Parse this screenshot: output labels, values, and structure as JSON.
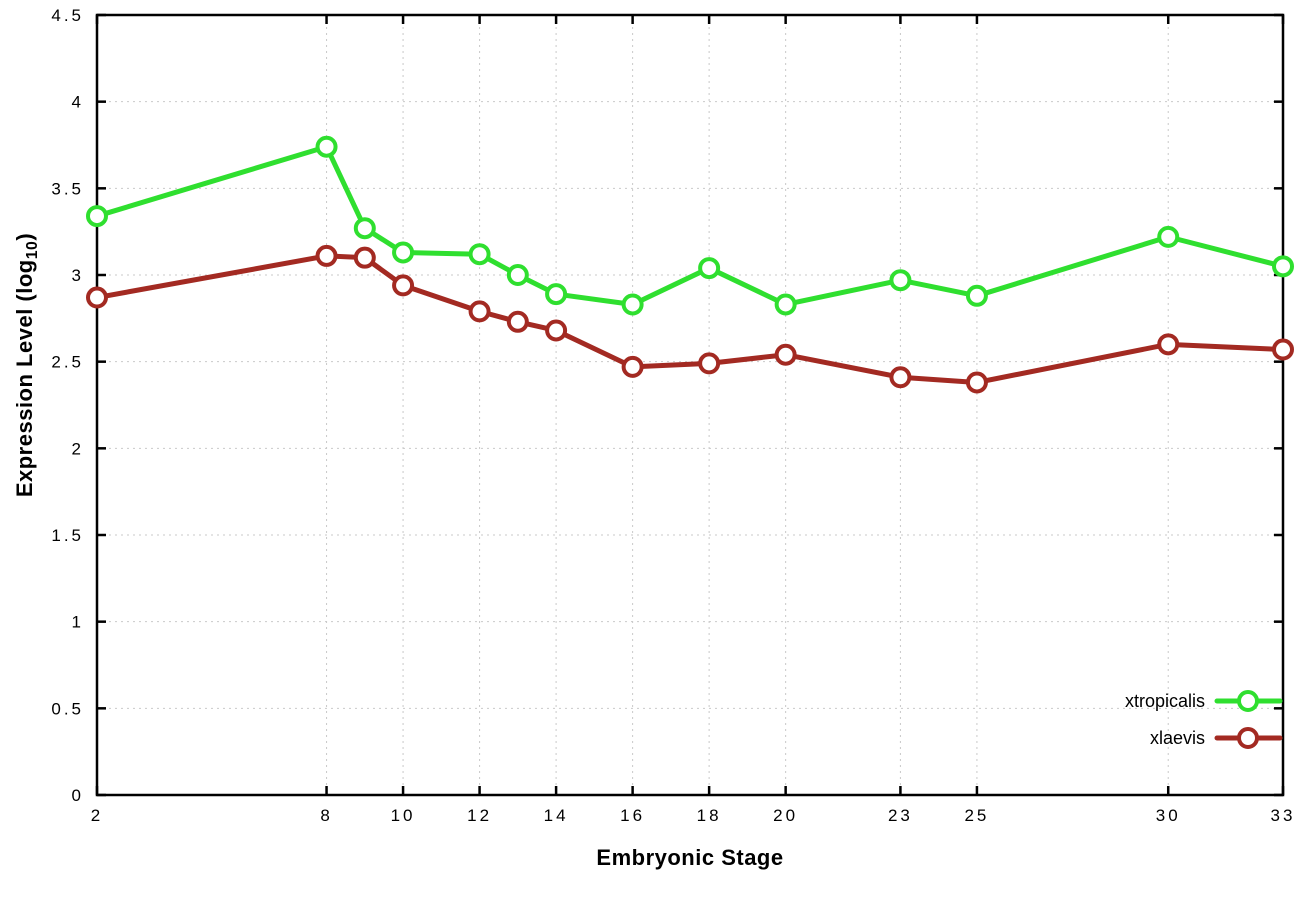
{
  "chart_data": {
    "type": "line",
    "title": "",
    "xlabel": "Embryonic Stage",
    "ylabel_prefix": "Expression Level (log",
    "ylabel_sub": "10",
    "ylabel_suffix": ")",
    "xlim": [
      2,
      33
    ],
    "ylim": [
      0,
      4.5
    ],
    "x_ticks": [
      2,
      8,
      10,
      12,
      14,
      16,
      18,
      20,
      23,
      25,
      30,
      33
    ],
    "y_ticks": [
      0,
      0.5,
      1,
      1.5,
      2,
      2.5,
      3,
      3.5,
      4,
      4.5
    ],
    "grid": true,
    "legend_position": "bottom-right",
    "x": [
      2,
      8,
      9,
      10,
      12,
      13,
      14,
      16,
      18,
      20,
      23,
      25,
      30,
      33
    ],
    "series": [
      {
        "name": "xtropicalis",
        "color": "#2fdf2f",
        "values": [
          3.34,
          3.74,
          3.27,
          3.13,
          3.12,
          3.0,
          2.89,
          2.83,
          3.04,
          2.83,
          2.97,
          2.88,
          3.22,
          3.05
        ]
      },
      {
        "name": "xlaevis",
        "color": "#a32a22",
        "values": [
          2.87,
          3.11,
          3.1,
          2.94,
          2.79,
          2.73,
          2.68,
          2.47,
          2.49,
          2.54,
          2.41,
          2.38,
          2.6,
          2.57
        ]
      }
    ],
    "colors": {
      "grid": "#c9c9c9",
      "axis": "#000000",
      "background": "#ffffff",
      "marker_fill": "#ffffff"
    }
  }
}
